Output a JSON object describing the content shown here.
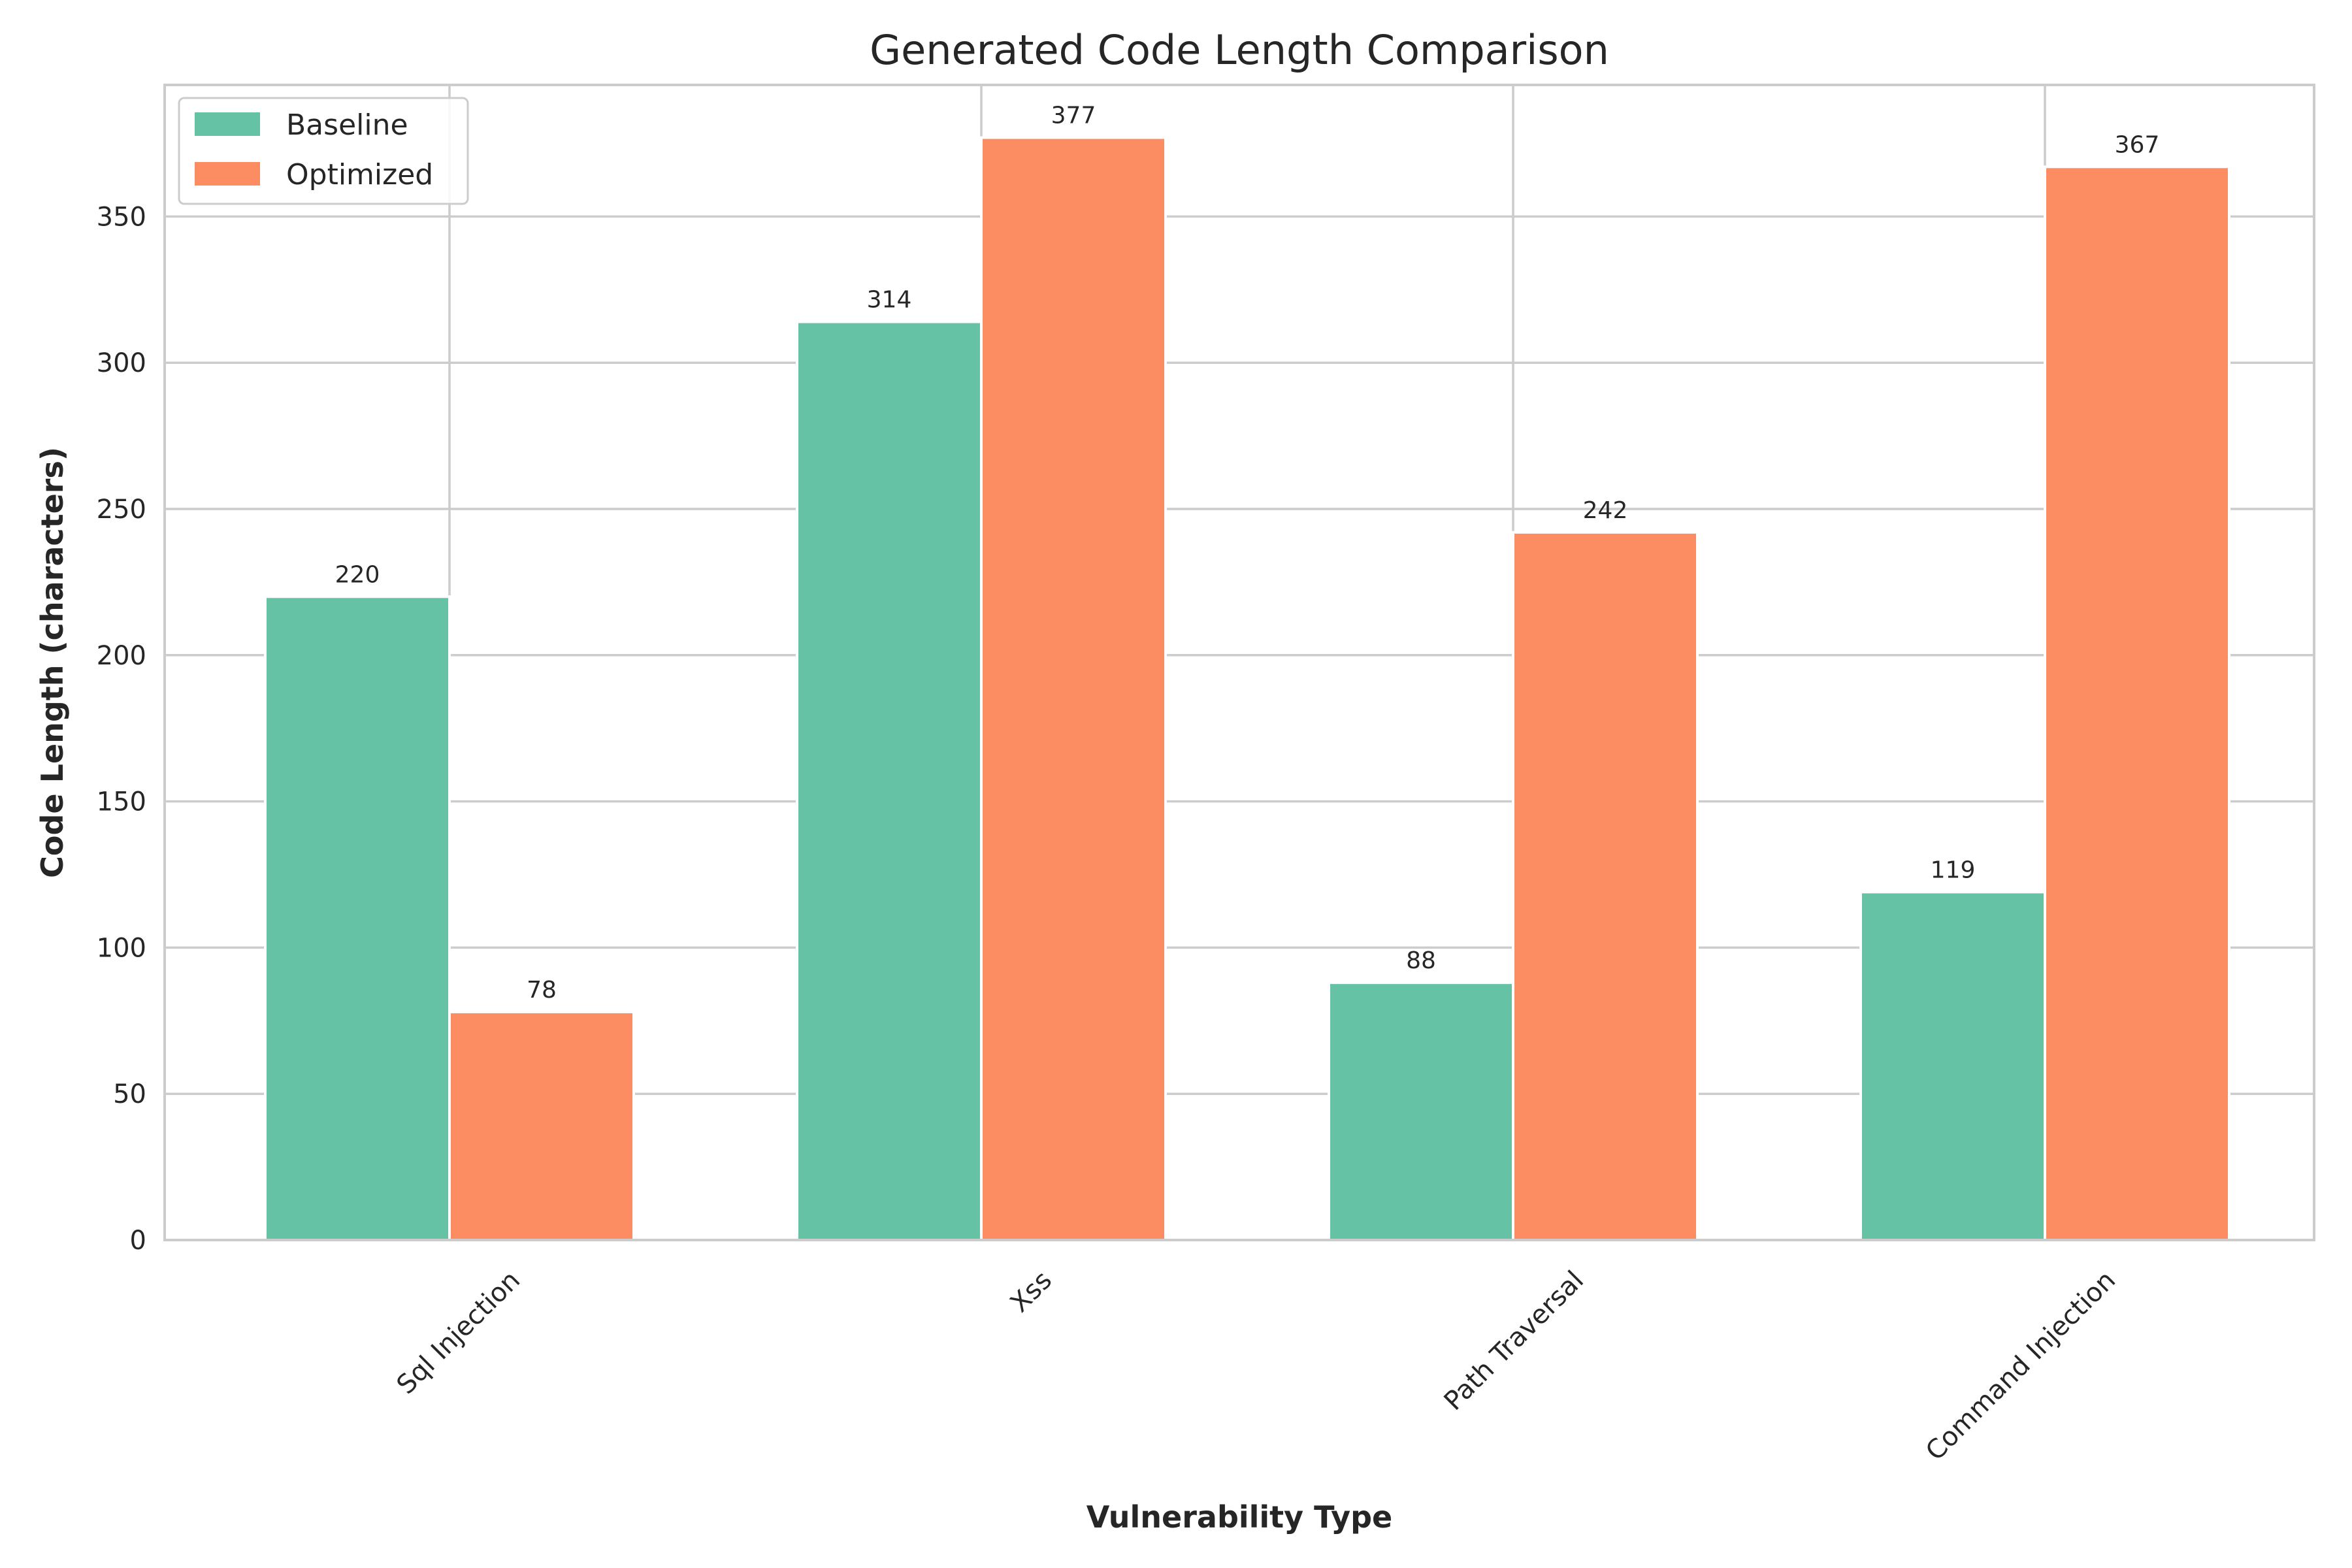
{
  "chart_data": {
    "type": "bar",
    "title": "Generated Code Length Comparison",
    "xlabel": "Vulnerability Type",
    "ylabel": "Code Length (characters)",
    "categories": [
      "Sql Injection",
      "Xss",
      "Path Traversal",
      "Command Injection"
    ],
    "series": [
      {
        "name": "Baseline",
        "values": [
          220,
          314,
          88,
          119
        ],
        "color": "#66c2a5"
      },
      {
        "name": "Optimized",
        "values": [
          78,
          377,
          242,
          367
        ],
        "color": "#fc8d62"
      }
    ],
    "ylim": [
      0,
      395
    ],
    "yticks": [
      0,
      50,
      100,
      150,
      200,
      250,
      300,
      350
    ],
    "grid": true,
    "legend_position": "upper-left"
  }
}
